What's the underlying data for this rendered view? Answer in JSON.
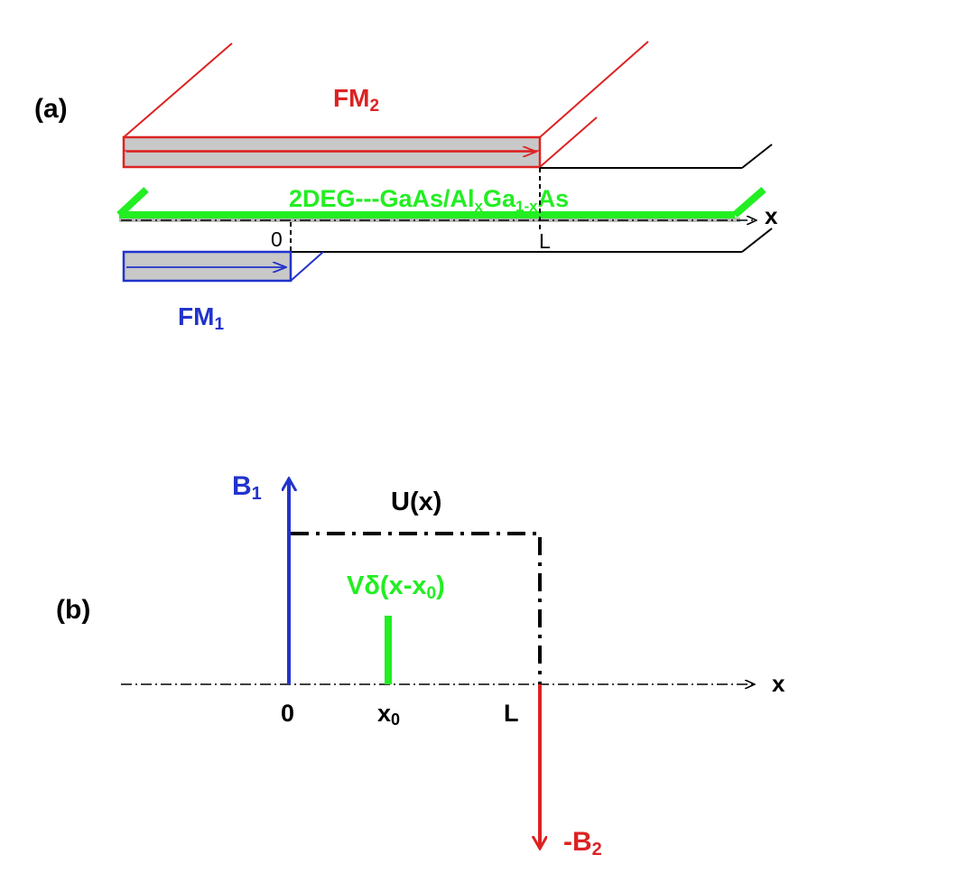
{
  "panel_a": {
    "label": "(a)",
    "fm2": {
      "main": "FM",
      "sub": "2"
    },
    "fm1": {
      "main": "FM",
      "sub": "1"
    },
    "twodeg": {
      "p1": "2DEG---GaAs/Al",
      "sub1": "x",
      "p2": "Ga",
      "sub2": "1-x",
      "p3": "As"
    },
    "x_axis": "x",
    "tick_0": "0",
    "tick_L": "L"
  },
  "panel_b": {
    "label": "(b)",
    "b1": {
      "main": "B",
      "sub": "1"
    },
    "ux": "U(x)",
    "vdelta": {
      "p1": "Vδ(x-x",
      "sub": "0",
      "p2": ")"
    },
    "x_axis": "x",
    "tick_0": "0",
    "tick_x0": {
      "main": "x",
      "sub": "0"
    },
    "tick_L": "L",
    "b2": {
      "main": "-B",
      "sub": "2"
    }
  },
  "colors": {
    "fm2": "#dd2222",
    "fm1": "#2233cc",
    "twodeg": "#22ee22",
    "axis": "#000000",
    "fill": "#c8c8c8"
  }
}
